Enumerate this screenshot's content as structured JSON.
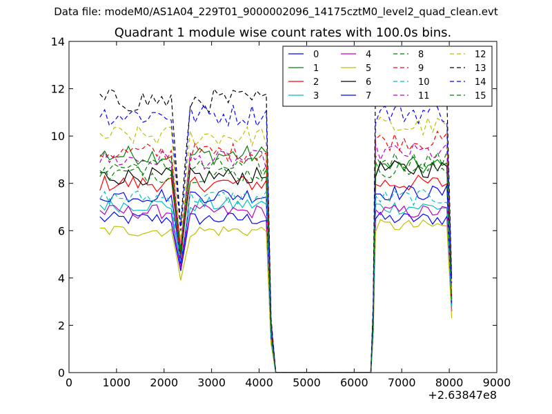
{
  "header": {
    "suptitle": "Data file: modeM0/AS1A04_229T01_9000002096_14175cztM0_level2_quad_clean.evt",
    "title": "Quadrant 1 module wise count rates with 100.0s bins."
  },
  "chart_data": {
    "type": "line",
    "title": "Quadrant 1 module wise count rates with 100.0s bins.",
    "xlabel": "",
    "ylabel": "",
    "xlim": [
      0,
      9000
    ],
    "ylim": [
      0,
      14
    ],
    "x_offset_label": "+2.63847e8",
    "xticks": [
      0,
      1000,
      2000,
      3000,
      4000,
      5000,
      6000,
      7000,
      8000,
      9000
    ],
    "yticks": [
      0,
      2,
      4,
      6,
      8,
      10,
      12,
      14
    ],
    "grid": false,
    "legend_position": "top-right",
    "segments": [
      {
        "x0": 650,
        "x1": 4150,
        "dip_x": 2350
      },
      {
        "x0": 6450,
        "x1": 8050
      }
    ],
    "series": [
      {
        "name": "0",
        "color": "#0000ff",
        "style": "solid",
        "seg1": 6.5,
        "dip": 4.3,
        "seg2": 6.5,
        "end": 2.6
      },
      {
        "name": "1",
        "color": "#008000",
        "style": "solid",
        "seg1": 9.2,
        "dip": 5.2,
        "seg2": 8.7,
        "end": 3.2
      },
      {
        "name": "2",
        "color": "#ff0000",
        "style": "solid",
        "seg1": 8.0,
        "dip": 4.8,
        "seg2": 8.0,
        "end": 2.9
      },
      {
        "name": "3",
        "color": "#00bfbf",
        "style": "solid",
        "seg1": 7.1,
        "dip": 4.5,
        "seg2": 7.0,
        "end": 2.7
      },
      {
        "name": "4",
        "color": "#bf00bf",
        "style": "solid",
        "seg1": 6.8,
        "dip": 4.4,
        "seg2": 6.8,
        "end": 2.6
      },
      {
        "name": "5",
        "color": "#bfbf00",
        "style": "solid",
        "seg1": 6.0,
        "dip": 3.9,
        "seg2": 6.2,
        "end": 2.3
      },
      {
        "name": "6",
        "color": "#000000",
        "style": "solid",
        "seg1": 8.3,
        "dip": 5.0,
        "seg2": 8.6,
        "end": 3.0
      },
      {
        "name": "7",
        "color": "#0000ff",
        "style": "solid",
        "seg1": 7.5,
        "dip": 4.6,
        "seg2": 7.6,
        "end": 2.8
      },
      {
        "name": "8",
        "color": "#008000",
        "style": "dashed",
        "seg1": 8.7,
        "dip": 5.0,
        "seg2": 9.0,
        "end": 3.1
      },
      {
        "name": "9",
        "color": "#ff0000",
        "style": "dashed",
        "seg1": 9.3,
        "dip": 5.3,
        "seg2": 9.8,
        "end": 3.3
      },
      {
        "name": "10",
        "color": "#00bfbf",
        "style": "dashed",
        "seg1": 7.4,
        "dip": 4.7,
        "seg2": 7.4,
        "end": 2.8
      },
      {
        "name": "11",
        "color": "#bf00bf",
        "style": "dashed",
        "seg1": 9.0,
        "dip": 5.2,
        "seg2": 9.3,
        "end": 3.2
      },
      {
        "name": "12",
        "color": "#bfbf00",
        "style": "dashed",
        "seg1": 10.0,
        "dip": 5.6,
        "seg2": 10.4,
        "end": 3.5
      },
      {
        "name": "13",
        "color": "#000000",
        "style": "dashed",
        "seg1": 11.5,
        "dip": 6.2,
        "seg2": 11.9,
        "end": 4.0
      },
      {
        "name": "14",
        "color": "#0000ff",
        "style": "dashed",
        "seg1": 10.9,
        "dip": 6.0,
        "seg2": 11.0,
        "end": 3.8
      },
      {
        "name": "15",
        "color": "#008000",
        "style": "dashed",
        "seg1": 8.4,
        "dip": 5.1,
        "seg2": 8.6,
        "end": 3.1
      }
    ]
  }
}
